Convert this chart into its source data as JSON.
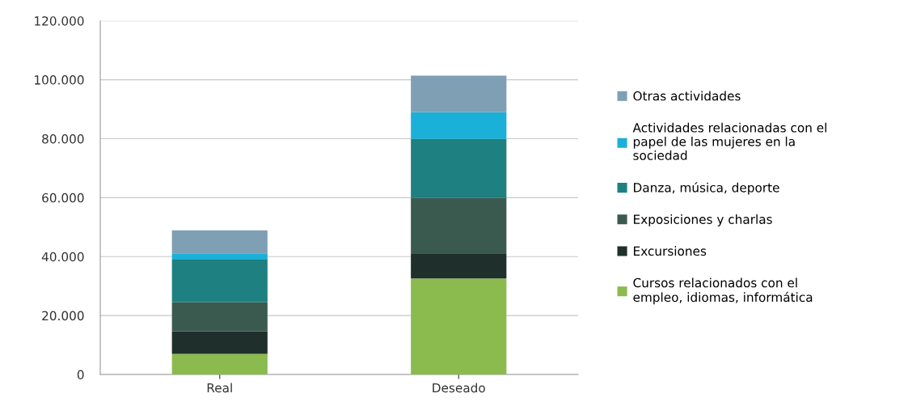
{
  "chart_data": {
    "type": "bar",
    "stacked": true,
    "categories": [
      "Real",
      "Deseado"
    ],
    "series": [
      {
        "name": "Cursos relacionados con el\nempleo, idiomas, informática",
        "color": "#8bba4f",
        "values": [
          7000,
          32600
        ]
      },
      {
        "name": "Excursiones",
        "color": "#1f2f2b",
        "values": [
          7700,
          8300
        ]
      },
      {
        "name": "Exposiciones y charlas",
        "color": "#3a5a50",
        "values": [
          9800,
          19000
        ]
      },
      {
        "name": "Danza, música, deporte",
        "color": "#1e8080",
        "values": [
          14500,
          20000
        ]
      },
      {
        "name": "Actividades relacionadas con el\npapel de las mujeres en la\nsociedad",
        "color": "#1ab0d8",
        "values": [
          2100,
          9100
        ]
      },
      {
        "name": "Otras actividades",
        "color": "#7f9fb5",
        "values": [
          7800,
          12400
        ]
      }
    ],
    "ylim": [
      0,
      120000
    ],
    "yticks": [
      {
        "value": 0,
        "label": "0"
      },
      {
        "value": 20000,
        "label": "20.000"
      },
      {
        "value": 40000,
        "label": "40.000"
      },
      {
        "value": 60000,
        "label": "60.000"
      },
      {
        "value": 80000,
        "label": "80.000"
      },
      {
        "value": 100000,
        "label": "100.000"
      },
      {
        "value": 120000,
        "label": "120.000"
      }
    ],
    "grid": "y",
    "legend": "right"
  }
}
